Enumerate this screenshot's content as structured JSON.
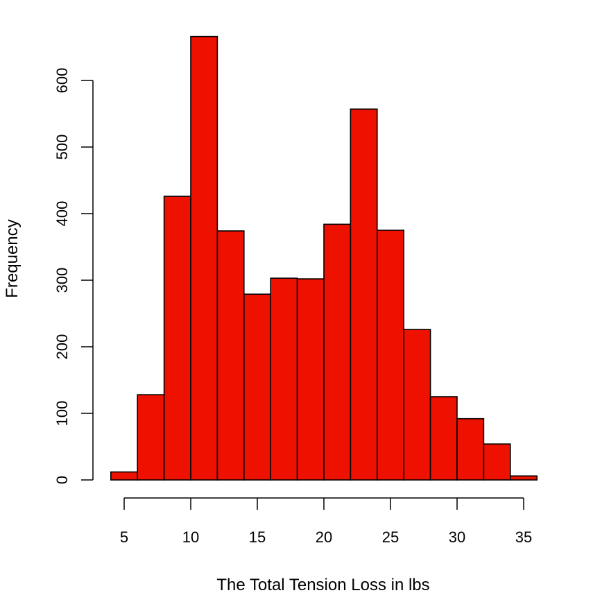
{
  "chart_data": {
    "type": "bar",
    "subtype": "histogram",
    "title": "",
    "xlabel": "The Total Tension Loss in lbs",
    "ylabel": "Frequency",
    "bin_edges": [
      4,
      6,
      8,
      10,
      12,
      14,
      16,
      18,
      20,
      22,
      24,
      26,
      28,
      30,
      32,
      34,
      36
    ],
    "categories": [
      "4-6",
      "6-8",
      "8-10",
      "10-12",
      "12-14",
      "14-16",
      "16-18",
      "18-20",
      "20-22",
      "22-24",
      "24-26",
      "26-28",
      "28-30",
      "30-32",
      "32-34",
      "34-36"
    ],
    "values": [
      12,
      128,
      426,
      666,
      374,
      279,
      303,
      302,
      384,
      557,
      375,
      226,
      125,
      92,
      54,
      6
    ],
    "xticks": [
      5,
      10,
      15,
      20,
      25,
      30,
      35
    ],
    "yticks": [
      0,
      100,
      200,
      300,
      400,
      500,
      600
    ],
    "xlim": [
      4,
      36
    ],
    "ylim": [
      0,
      600
    ],
    "grid": false,
    "legend": null,
    "bar_color": "#ee1100",
    "edge_color": "#000000"
  },
  "labels": {
    "xlabel": "The Total Tension Loss in lbs",
    "ylabel": "Frequency"
  }
}
